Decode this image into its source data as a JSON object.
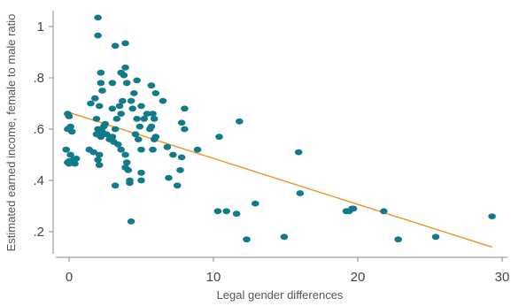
{
  "chart_data": {
    "type": "scatter",
    "xlabel": "Legal gender differences",
    "ylabel": "Estimated earned income, female to male ratio",
    "xlim": [
      -1,
      31
    ],
    "ylim": [
      0.12,
      1.08
    ],
    "x_ticks": [
      0,
      10,
      20,
      30
    ],
    "x_tick_labels": [
      "0",
      "10",
      "20",
      "30"
    ],
    "y_ticks": [
      0.2,
      0.4,
      0.6,
      0.8,
      1.0
    ],
    "y_tick_labels": [
      ".2",
      ".4",
      ".6",
      ".8",
      "1"
    ],
    "grid": false,
    "legend": "none",
    "colors": {
      "points": "#117a8b",
      "fit_line": "#f0921e",
      "axes": "#8a8a8a"
    },
    "fit_line": {
      "x": [
        0,
        29.3
      ],
      "y": [
        0.665,
        0.14
      ]
    },
    "points": [
      {
        "x": -0.1,
        "y": 0.66
      },
      {
        "x": 0.0,
        "y": 0.65
      },
      {
        "x": -0.1,
        "y": 0.6
      },
      {
        "x": 0.1,
        "y": 0.61
      },
      {
        "x": 0.2,
        "y": 0.59
      },
      {
        "x": -0.2,
        "y": 0.52
      },
      {
        "x": 0.1,
        "y": 0.5
      },
      {
        "x": 0.3,
        "y": 0.48
      },
      {
        "x": 0.0,
        "y": 0.475
      },
      {
        "x": -0.1,
        "y": 0.47
      },
      {
        "x": 0.3,
        "y": 0.47
      },
      {
        "x": 0.0,
        "y": 0.465
      },
      {
        "x": 0.4,
        "y": 0.465
      },
      {
        "x": 0.5,
        "y": 0.485
      },
      {
        "x": 1.5,
        "y": 0.7
      },
      {
        "x": 1.8,
        "y": 0.72
      },
      {
        "x": 2.2,
        "y": 0.82
      },
      {
        "x": 2.0,
        "y": 1.035
      },
      {
        "x": 2.0,
        "y": 0.965
      },
      {
        "x": 2.2,
        "y": 0.78
      },
      {
        "x": 2.3,
        "y": 0.75
      },
      {
        "x": 2.1,
        "y": 0.69
      },
      {
        "x": 1.9,
        "y": 0.64
      },
      {
        "x": 2.0,
        "y": 0.6
      },
      {
        "x": 1.9,
        "y": 0.58
      },
      {
        "x": 2.2,
        "y": 0.57
      },
      {
        "x": 1.7,
        "y": 0.51
      },
      {
        "x": 2.1,
        "y": 0.5
      },
      {
        "x": 2.0,
        "y": 0.48
      },
      {
        "x": 2.1,
        "y": 0.46
      },
      {
        "x": 1.4,
        "y": 0.52
      },
      {
        "x": 2.3,
        "y": 0.59
      },
      {
        "x": 2.4,
        "y": 0.61
      },
      {
        "x": 2.5,
        "y": 0.62
      },
      {
        "x": 2.6,
        "y": 0.58
      },
      {
        "x": 2.8,
        "y": 0.56
      },
      {
        "x": 3.0,
        "y": 0.68
      },
      {
        "x": 3.0,
        "y": 0.78
      },
      {
        "x": 3.2,
        "y": 0.925
      },
      {
        "x": 3.6,
        "y": 0.82
      },
      {
        "x": 3.8,
        "y": 0.81
      },
      {
        "x": 3.9,
        "y": 0.84
      },
      {
        "x": 3.9,
        "y": 0.935
      },
      {
        "x": 4.0,
        "y": 0.78
      },
      {
        "x": 4.3,
        "y": 0.71
      },
      {
        "x": 4.5,
        "y": 0.74
      },
      {
        "x": 4.7,
        "y": 0.79
      },
      {
        "x": 3.7,
        "y": 0.71
      },
      {
        "x": 3.5,
        "y": 0.69
      },
      {
        "x": 3.6,
        "y": 0.66
      },
      {
        "x": 3.3,
        "y": 0.64
      },
      {
        "x": 3.2,
        "y": 0.6
      },
      {
        "x": 3.0,
        "y": 0.57
      },
      {
        "x": 3.1,
        "y": 0.55
      },
      {
        "x": 3.4,
        "y": 0.54
      },
      {
        "x": 3.6,
        "y": 0.52
      },
      {
        "x": 3.9,
        "y": 0.5
      },
      {
        "x": 4.0,
        "y": 0.47
      },
      {
        "x": 4.1,
        "y": 0.44
      },
      {
        "x": 3.9,
        "y": 0.45
      },
      {
        "x": 4.2,
        "y": 0.4
      },
      {
        "x": 4.2,
        "y": 0.39
      },
      {
        "x": 3.2,
        "y": 0.38
      },
      {
        "x": 4.3,
        "y": 0.24
      },
      {
        "x": 4.6,
        "y": 0.58
      },
      {
        "x": 4.8,
        "y": 0.56
      },
      {
        "x": 4.9,
        "y": 0.61
      },
      {
        "x": 4.7,
        "y": 0.64
      },
      {
        "x": 4.4,
        "y": 0.68
      },
      {
        "x": 5.0,
        "y": 0.69
      },
      {
        "x": 5.2,
        "y": 0.64
      },
      {
        "x": 5.4,
        "y": 0.66
      },
      {
        "x": 5.0,
        "y": 0.52
      },
      {
        "x": 5.0,
        "y": 0.43
      },
      {
        "x": 5.0,
        "y": 0.4
      },
      {
        "x": 5.6,
        "y": 0.6
      },
      {
        "x": 5.8,
        "y": 0.66
      },
      {
        "x": 5.9,
        "y": 0.64
      },
      {
        "x": 5.7,
        "y": 0.61
      },
      {
        "x": 5.9,
        "y": 0.56
      },
      {
        "x": 5.8,
        "y": 0.52
      },
      {
        "x": 6.0,
        "y": 0.57
      },
      {
        "x": 6.0,
        "y": 0.74
      },
      {
        "x": 5.7,
        "y": 0.77
      },
      {
        "x": 6.5,
        "y": 0.71
      },
      {
        "x": 6.8,
        "y": 0.53
      },
      {
        "x": 6.9,
        "y": 0.41
      },
      {
        "x": 7.2,
        "y": 0.5
      },
      {
        "x": 7.5,
        "y": 0.38
      },
      {
        "x": 7.7,
        "y": 0.44
      },
      {
        "x": 7.8,
        "y": 0.49
      },
      {
        "x": 7.8,
        "y": 0.625
      },
      {
        "x": 8.0,
        "y": 0.68
      },
      {
        "x": 8.0,
        "y": 0.6
      },
      {
        "x": 8.9,
        "y": 0.52
      },
      {
        "x": 10.4,
        "y": 0.57
      },
      {
        "x": 11.8,
        "y": 0.63
      },
      {
        "x": 10.3,
        "y": 0.28
      },
      {
        "x": 10.9,
        "y": 0.28
      },
      {
        "x": 11.6,
        "y": 0.27
      },
      {
        "x": 12.3,
        "y": 0.17
      },
      {
        "x": 12.9,
        "y": 0.31
      },
      {
        "x": 14.9,
        "y": 0.18
      },
      {
        "x": 15.9,
        "y": 0.51
      },
      {
        "x": 16.0,
        "y": 0.35
      },
      {
        "x": 19.2,
        "y": 0.28
      },
      {
        "x": 19.4,
        "y": 0.28
      },
      {
        "x": 19.6,
        "y": 0.29
      },
      {
        "x": 19.7,
        "y": 0.29
      },
      {
        "x": 21.8,
        "y": 0.28
      },
      {
        "x": 22.8,
        "y": 0.17
      },
      {
        "x": 25.4,
        "y": 0.18
      },
      {
        "x": 29.3,
        "y": 0.26
      }
    ]
  }
}
